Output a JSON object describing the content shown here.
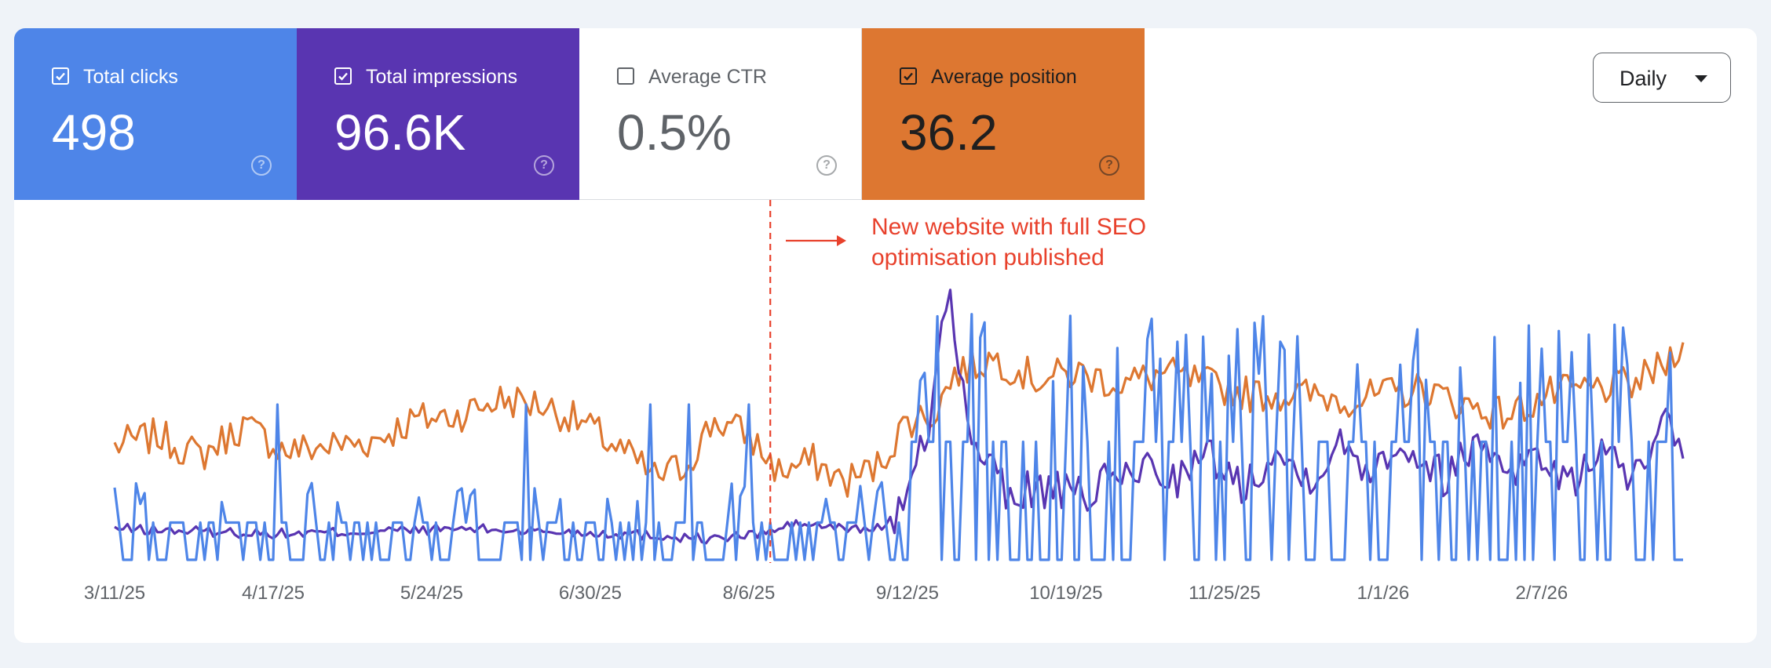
{
  "metrics": [
    {
      "label": "Total clicks",
      "value": "498",
      "checked": true,
      "bg": "#4e85e8",
      "fg": "#ffffff"
    },
    {
      "label": "Total impressions",
      "value": "96.6K",
      "checked": true,
      "bg": "#5935b1",
      "fg": "#ffffff"
    },
    {
      "label": "Average CTR",
      "value": "0.5%",
      "checked": false,
      "bg": "#ffffff",
      "fg": "#5f6368"
    },
    {
      "label": "Average position",
      "value": "36.2",
      "checked": true,
      "bg": "#dd7731",
      "fg": "#1f1f1f"
    }
  ],
  "granularity": {
    "selected": "Daily"
  },
  "icons": {
    "checkbox": "checkbox-icon",
    "help": "help-circle-icon",
    "dropdown": "caret-down-icon"
  },
  "chart_data": {
    "type": "line",
    "title": "",
    "xlabel": "",
    "ylabel": "",
    "grid": false,
    "legend": "metric cards above plot",
    "x_start": "3/11/25",
    "n_days": 367,
    "x_ticks": [
      {
        "day": 0,
        "label": "3/11/25"
      },
      {
        "day": 37,
        "label": "4/17/25"
      },
      {
        "day": 74,
        "label": "5/24/25"
      },
      {
        "day": 111,
        "label": "6/30/25"
      },
      {
        "day": 148,
        "label": "8/6/25"
      },
      {
        "day": 185,
        "label": "9/12/25"
      },
      {
        "day": 222,
        "label": "10/19/25"
      },
      {
        "day": 259,
        "label": "11/25/25"
      },
      {
        "day": 296,
        "label": "1/1/26"
      },
      {
        "day": 333,
        "label": "2/7/26"
      }
    ],
    "annotation": {
      "day": 153,
      "line1": "New website with full SEO",
      "line2": "optimisation published",
      "color": "#e8412c"
    },
    "series": [
      {
        "name": "Average position",
        "color": "#dd7731",
        "ylim": [
          0,
          1
        ],
        "description": "normalized display scale; noisy around 0.22 before Aug 2025, dips to ~0.15 near 9/1/25, then ~0.35-0.45 afterwards",
        "keypoints": [
          [
            0,
            0.22
          ],
          [
            10,
            0.24
          ],
          [
            20,
            0.2
          ],
          [
            30,
            0.26
          ],
          [
            40,
            0.21
          ],
          [
            50,
            0.22
          ],
          [
            60,
            0.23
          ],
          [
            70,
            0.27
          ],
          [
            80,
            0.28
          ],
          [
            90,
            0.31
          ],
          [
            100,
            0.3
          ],
          [
            110,
            0.26
          ],
          [
            120,
            0.2
          ],
          [
            126,
            0.16
          ],
          [
            133,
            0.18
          ],
          [
            140,
            0.27
          ],
          [
            148,
            0.24
          ],
          [
            155,
            0.17
          ],
          [
            163,
            0.19
          ],
          [
            170,
            0.15
          ],
          [
            178,
            0.18
          ],
          [
            185,
            0.27
          ],
          [
            191,
            0.28
          ],
          [
            196,
            0.36
          ],
          [
            205,
            0.39
          ],
          [
            215,
            0.35
          ],
          [
            225,
            0.36
          ],
          [
            235,
            0.34
          ],
          [
            245,
            0.36
          ],
          [
            255,
            0.34
          ],
          [
            265,
            0.32
          ],
          [
            275,
            0.32
          ],
          [
            290,
            0.31
          ],
          [
            305,
            0.33
          ],
          [
            315,
            0.3
          ],
          [
            325,
            0.28
          ],
          [
            335,
            0.32
          ],
          [
            345,
            0.33
          ],
          [
            355,
            0.34
          ],
          [
            362,
            0.38
          ],
          [
            366,
            0.43
          ]
        ]
      },
      {
        "name": "Total impressions",
        "color": "#5935b1",
        "ylim": [
          0,
          1
        ],
        "description": "normalized display scale; flat near 0.06 until Aug 2025, spike to 0.5 near 9/12/25, then ~0.18-0.25 noisy",
        "keypoints": [
          [
            0,
            0.06
          ],
          [
            40,
            0.05
          ],
          [
            80,
            0.06
          ],
          [
            120,
            0.05
          ],
          [
            140,
            0.04
          ],
          [
            150,
            0.05
          ],
          [
            160,
            0.07
          ],
          [
            170,
            0.06
          ],
          [
            178,
            0.06
          ],
          [
            183,
            0.09
          ],
          [
            186,
            0.14
          ],
          [
            190,
            0.26
          ],
          [
            193,
            0.47
          ],
          [
            195,
            0.5
          ],
          [
            197,
            0.4
          ],
          [
            200,
            0.2
          ],
          [
            203,
            0.21
          ],
          [
            208,
            0.12
          ],
          [
            215,
            0.14
          ],
          [
            225,
            0.12
          ],
          [
            232,
            0.15
          ],
          [
            240,
            0.18
          ],
          [
            248,
            0.16
          ],
          [
            256,
            0.2
          ],
          [
            263,
            0.14
          ],
          [
            270,
            0.21
          ],
          [
            278,
            0.16
          ],
          [
            286,
            0.22
          ],
          [
            293,
            0.18
          ],
          [
            300,
            0.23
          ],
          [
            310,
            0.16
          ],
          [
            318,
            0.23
          ],
          [
            326,
            0.18
          ],
          [
            333,
            0.2
          ],
          [
            340,
            0.14
          ],
          [
            346,
            0.22
          ],
          [
            352,
            0.17
          ],
          [
            358,
            0.16
          ],
          [
            361,
            0.26
          ],
          [
            366,
            0.22
          ]
        ]
      },
      {
        "name": "Total clicks",
        "color": "#4e85e8",
        "ylim": [
          0,
          1
        ],
        "description": "normalized display scale; mostly 0-0.15 spikes before Sep 2025, then frequent spikes up to 0.4-0.5",
        "keypoints": [
          [
            0,
            0.0
          ],
          [
            2,
            0.25
          ],
          [
            4,
            0.04
          ],
          [
            10,
            0.12
          ],
          [
            16,
            0.0
          ],
          [
            20,
            0.12
          ],
          [
            28,
            0.22
          ],
          [
            35,
            0.0
          ],
          [
            48,
            0.12
          ],
          [
            60,
            0.0
          ],
          [
            72,
            0.1
          ],
          [
            85,
            0.0
          ],
          [
            98,
            0.12
          ],
          [
            110,
            0.22
          ],
          [
            118,
            0.0
          ],
          [
            126,
            0.12
          ],
          [
            136,
            0.3
          ],
          [
            145,
            0.0
          ],
          [
            150,
            0.1
          ],
          [
            160,
            0.0
          ],
          [
            175,
            0.12
          ],
          [
            180,
            0.28
          ],
          [
            185,
            0.0
          ],
          [
            192,
            0.35
          ],
          [
            200,
            0.0
          ],
          [
            208,
            0.25
          ],
          [
            214,
            0.3
          ],
          [
            220,
            0.0
          ],
          [
            228,
            0.35
          ],
          [
            236,
            0.0
          ],
          [
            244,
            0.3
          ],
          [
            250,
            0.12
          ],
          [
            258,
            0.3
          ],
          [
            266,
            0.0
          ],
          [
            274,
            0.38
          ],
          [
            282,
            0.0
          ],
          [
            292,
            0.4
          ],
          [
            300,
            0.0
          ],
          [
            310,
            0.45
          ],
          [
            318,
            0.0
          ],
          [
            328,
            0.4
          ],
          [
            336,
            0.0
          ],
          [
            346,
            0.42
          ],
          [
            355,
            0.0
          ],
          [
            362,
            0.3
          ],
          [
            366,
            0.06
          ]
        ]
      }
    ]
  }
}
